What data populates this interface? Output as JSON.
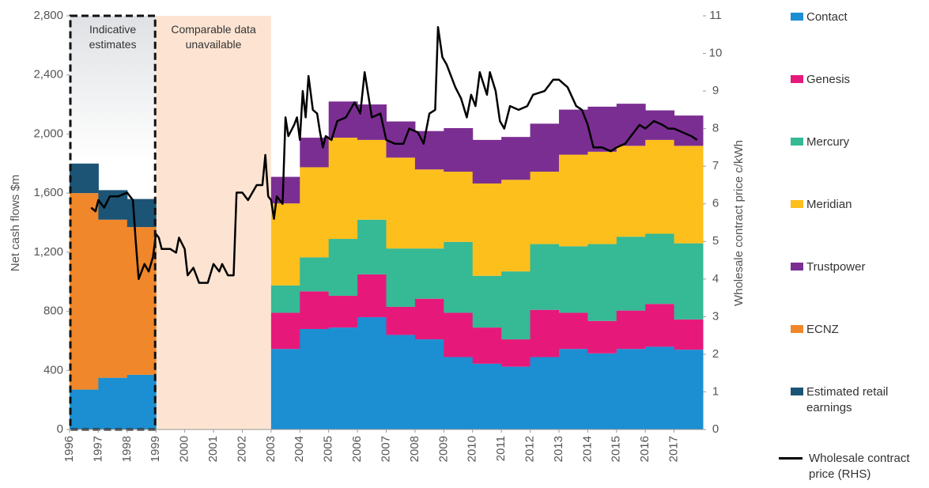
{
  "chart_data": {
    "type": "stacked_area_line",
    "y_label": "Net cash flows $m",
    "y2_label": "Wholesale contract price c/kWh",
    "x": [
      1996,
      1997,
      1998,
      1999,
      2000,
      2001,
      2002,
      2003,
      2004,
      2005,
      2006,
      2007,
      2008,
      2009,
      2010,
      2011,
      2012,
      2013,
      2014,
      2015,
      2016,
      2017
    ],
    "xlim": [
      1996,
      2018
    ],
    "xticks": [
      1996,
      1997,
      1998,
      1999,
      2000,
      2001,
      2002,
      2003,
      2004,
      2005,
      2006,
      2007,
      2008,
      2009,
      2010,
      2011,
      2012,
      2013,
      2014,
      2015,
      2016,
      2017
    ],
    "ylim": [
      0,
      2800
    ],
    "yticks": [
      0,
      400,
      800,
      {
        "value": 1200,
        "label": "1,200"
      },
      {
        "value": 1600,
        "label": "1,600"
      },
      {
        "value": 2000,
        "label": "2,000"
      },
      {
        "value": 2400,
        "label": "2,400"
      },
      {
        "value": 2800,
        "label": "2,800"
      }
    ],
    "y2lim": [
      0,
      11
    ],
    "y2ticks": [
      0,
      1,
      2,
      3,
      4,
      5,
      6,
      7,
      8,
      9,
      10,
      11
    ],
    "regions": [
      {
        "label": "Indicative estimates",
        "from": 1996,
        "to": 1999,
        "color": "#e2e4e6"
      },
      {
        "label": "Comparable data unavailable",
        "from": 1999,
        "to": 2003,
        "color": "#fde4d2"
      }
    ],
    "series": [
      {
        "name": "Contact",
        "color": "#1b8fd2",
        "values": [
          270,
          350,
          370,
          null,
          null,
          null,
          null,
          545,
          680,
          690,
          760,
          640,
          610,
          490,
          445,
          425,
          490,
          545,
          515,
          545,
          560,
          540
        ]
      },
      {
        "name": "Genesis",
        "color": "#e6197b",
        "values": [
          null,
          null,
          null,
          null,
          null,
          null,
          null,
          245,
          255,
          215,
          290,
          190,
          275,
          300,
          245,
          185,
          320,
          245,
          220,
          260,
          290,
          205
        ]
      },
      {
        "name": "Mercury",
        "color": "#36b995",
        "values": [
          null,
          null,
          null,
          null,
          null,
          null,
          null,
          185,
          230,
          385,
          370,
          395,
          340,
          480,
          350,
          460,
          445,
          450,
          520,
          500,
          475,
          515
        ]
      },
      {
        "name": "Meridian",
        "color": "#fdbf1c",
        "values": [
          null,
          null,
          null,
          null,
          null,
          null,
          null,
          555,
          610,
          685,
          540,
          615,
          535,
          475,
          625,
          620,
          490,
          620,
          625,
          615,
          635,
          660
        ]
      },
      {
        "name": "Trustpower",
        "color": "#7b2e92",
        "values": [
          null,
          null,
          null,
          null,
          null,
          null,
          null,
          180,
          200,
          245,
          240,
          245,
          260,
          295,
          295,
          290,
          325,
          305,
          305,
          285,
          200,
          205
        ]
      },
      {
        "name": "ECNZ",
        "color": "#f0872a",
        "values": [
          1330,
          1070,
          1000,
          null,
          null,
          null,
          null,
          null,
          null,
          null,
          null,
          null,
          null,
          null,
          null,
          null,
          null,
          null,
          null,
          null,
          null,
          null
        ]
      },
      {
        "name": "Estimated retail earnings",
        "color": "#1c5475",
        "values": [
          200,
          200,
          190,
          null,
          null,
          null,
          null,
          null,
          null,
          null,
          null,
          null,
          null,
          null,
          null,
          null,
          null,
          null,
          null,
          null,
          null,
          null
        ]
      },
      {
        "name": "Wholesale contract price (RHS)",
        "color": "#000000",
        "axis": "y2",
        "x": [
          1996.75,
          1996.9,
          1997.0,
          1997.2,
          1997.4,
          1997.7,
          1998.0,
          1998.2,
          1998.3,
          1998.4,
          1998.6,
          1998.75,
          1998.9,
          1999.0,
          1999.1,
          1999.2,
          1999.5,
          1999.7,
          1999.8,
          2000.0,
          2000.1,
          2000.3,
          2000.5,
          2000.8,
          2001.0,
          2001.2,
          2001.3,
          2001.5,
          2001.7,
          2001.8,
          2002.0,
          2002.2,
          2002.5,
          2002.7,
          2002.8,
          2002.9,
          2003.0,
          2003.1,
          2003.2,
          2003.4,
          2003.5,
          2003.6,
          2003.8,
          2003.9,
          2004.0,
          2004.1,
          2004.2,
          2004.3,
          2004.45,
          2004.6,
          2004.7,
          2004.8,
          2004.9,
          2005.1,
          2005.3,
          2005.6,
          2005.9,
          2006.1,
          2006.25,
          2006.5,
          2006.8,
          2007.0,
          2007.3,
          2007.6,
          2007.8,
          2008.1,
          2008.3,
          2008.5,
          2008.7,
          2008.8,
          2008.95,
          2009.1,
          2009.4,
          2009.6,
          2009.8,
          2009.95,
          2010.1,
          2010.25,
          2010.5,
          2010.6,
          2010.8,
          2010.95,
          2011.1,
          2011.3,
          2011.6,
          2011.9,
          2012.1,
          2012.5,
          2012.8,
          2013.0,
          2013.3,
          2013.6,
          2013.8,
          2014.0,
          2014.2,
          2014.5,
          2014.8,
          2015.0,
          2015.3,
          2015.5,
          2015.8,
          2016.0,
          2016.3,
          2016.6,
          2016.8,
          2017.0,
          2017.3,
          2017.6,
          2017.8
        ],
        "values": [
          5.9,
          5.8,
          6.1,
          5.9,
          6.2,
          6.2,
          6.3,
          6.1,
          5.0,
          4.0,
          4.4,
          4.2,
          4.6,
          5.2,
          5.1,
          4.8,
          4.8,
          4.7,
          5.1,
          4.8,
          4.1,
          4.3,
          3.9,
          3.9,
          4.4,
          4.2,
          4.4,
          4.1,
          4.1,
          6.3,
          6.3,
          6.1,
          6.5,
          6.5,
          7.3,
          6.2,
          6.1,
          5.6,
          6.2,
          6.0,
          8.3,
          7.8,
          8.1,
          8.3,
          7.7,
          9.0,
          8.3,
          9.4,
          8.5,
          8.4,
          7.9,
          7.5,
          7.8,
          7.7,
          8.2,
          8.3,
          8.7,
          8.4,
          9.5,
          8.3,
          8.4,
          7.7,
          7.6,
          7.6,
          8.0,
          7.9,
          7.6,
          8.4,
          8.5,
          10.7,
          9.9,
          9.7,
          9.1,
          8.8,
          8.3,
          8.9,
          8.6,
          9.5,
          8.9,
          9.5,
          9.0,
          8.2,
          8.0,
          8.6,
          8.5,
          8.6,
          8.9,
          9.0,
          9.3,
          9.3,
          9.1,
          8.6,
          8.5,
          8.1,
          7.5,
          7.5,
          7.4,
          7.5,
          7.6,
          7.8,
          8.1,
          8.0,
          8.2,
          8.1,
          8.0,
          8.0,
          7.9,
          7.8,
          7.7
        ]
      }
    ]
  }
}
